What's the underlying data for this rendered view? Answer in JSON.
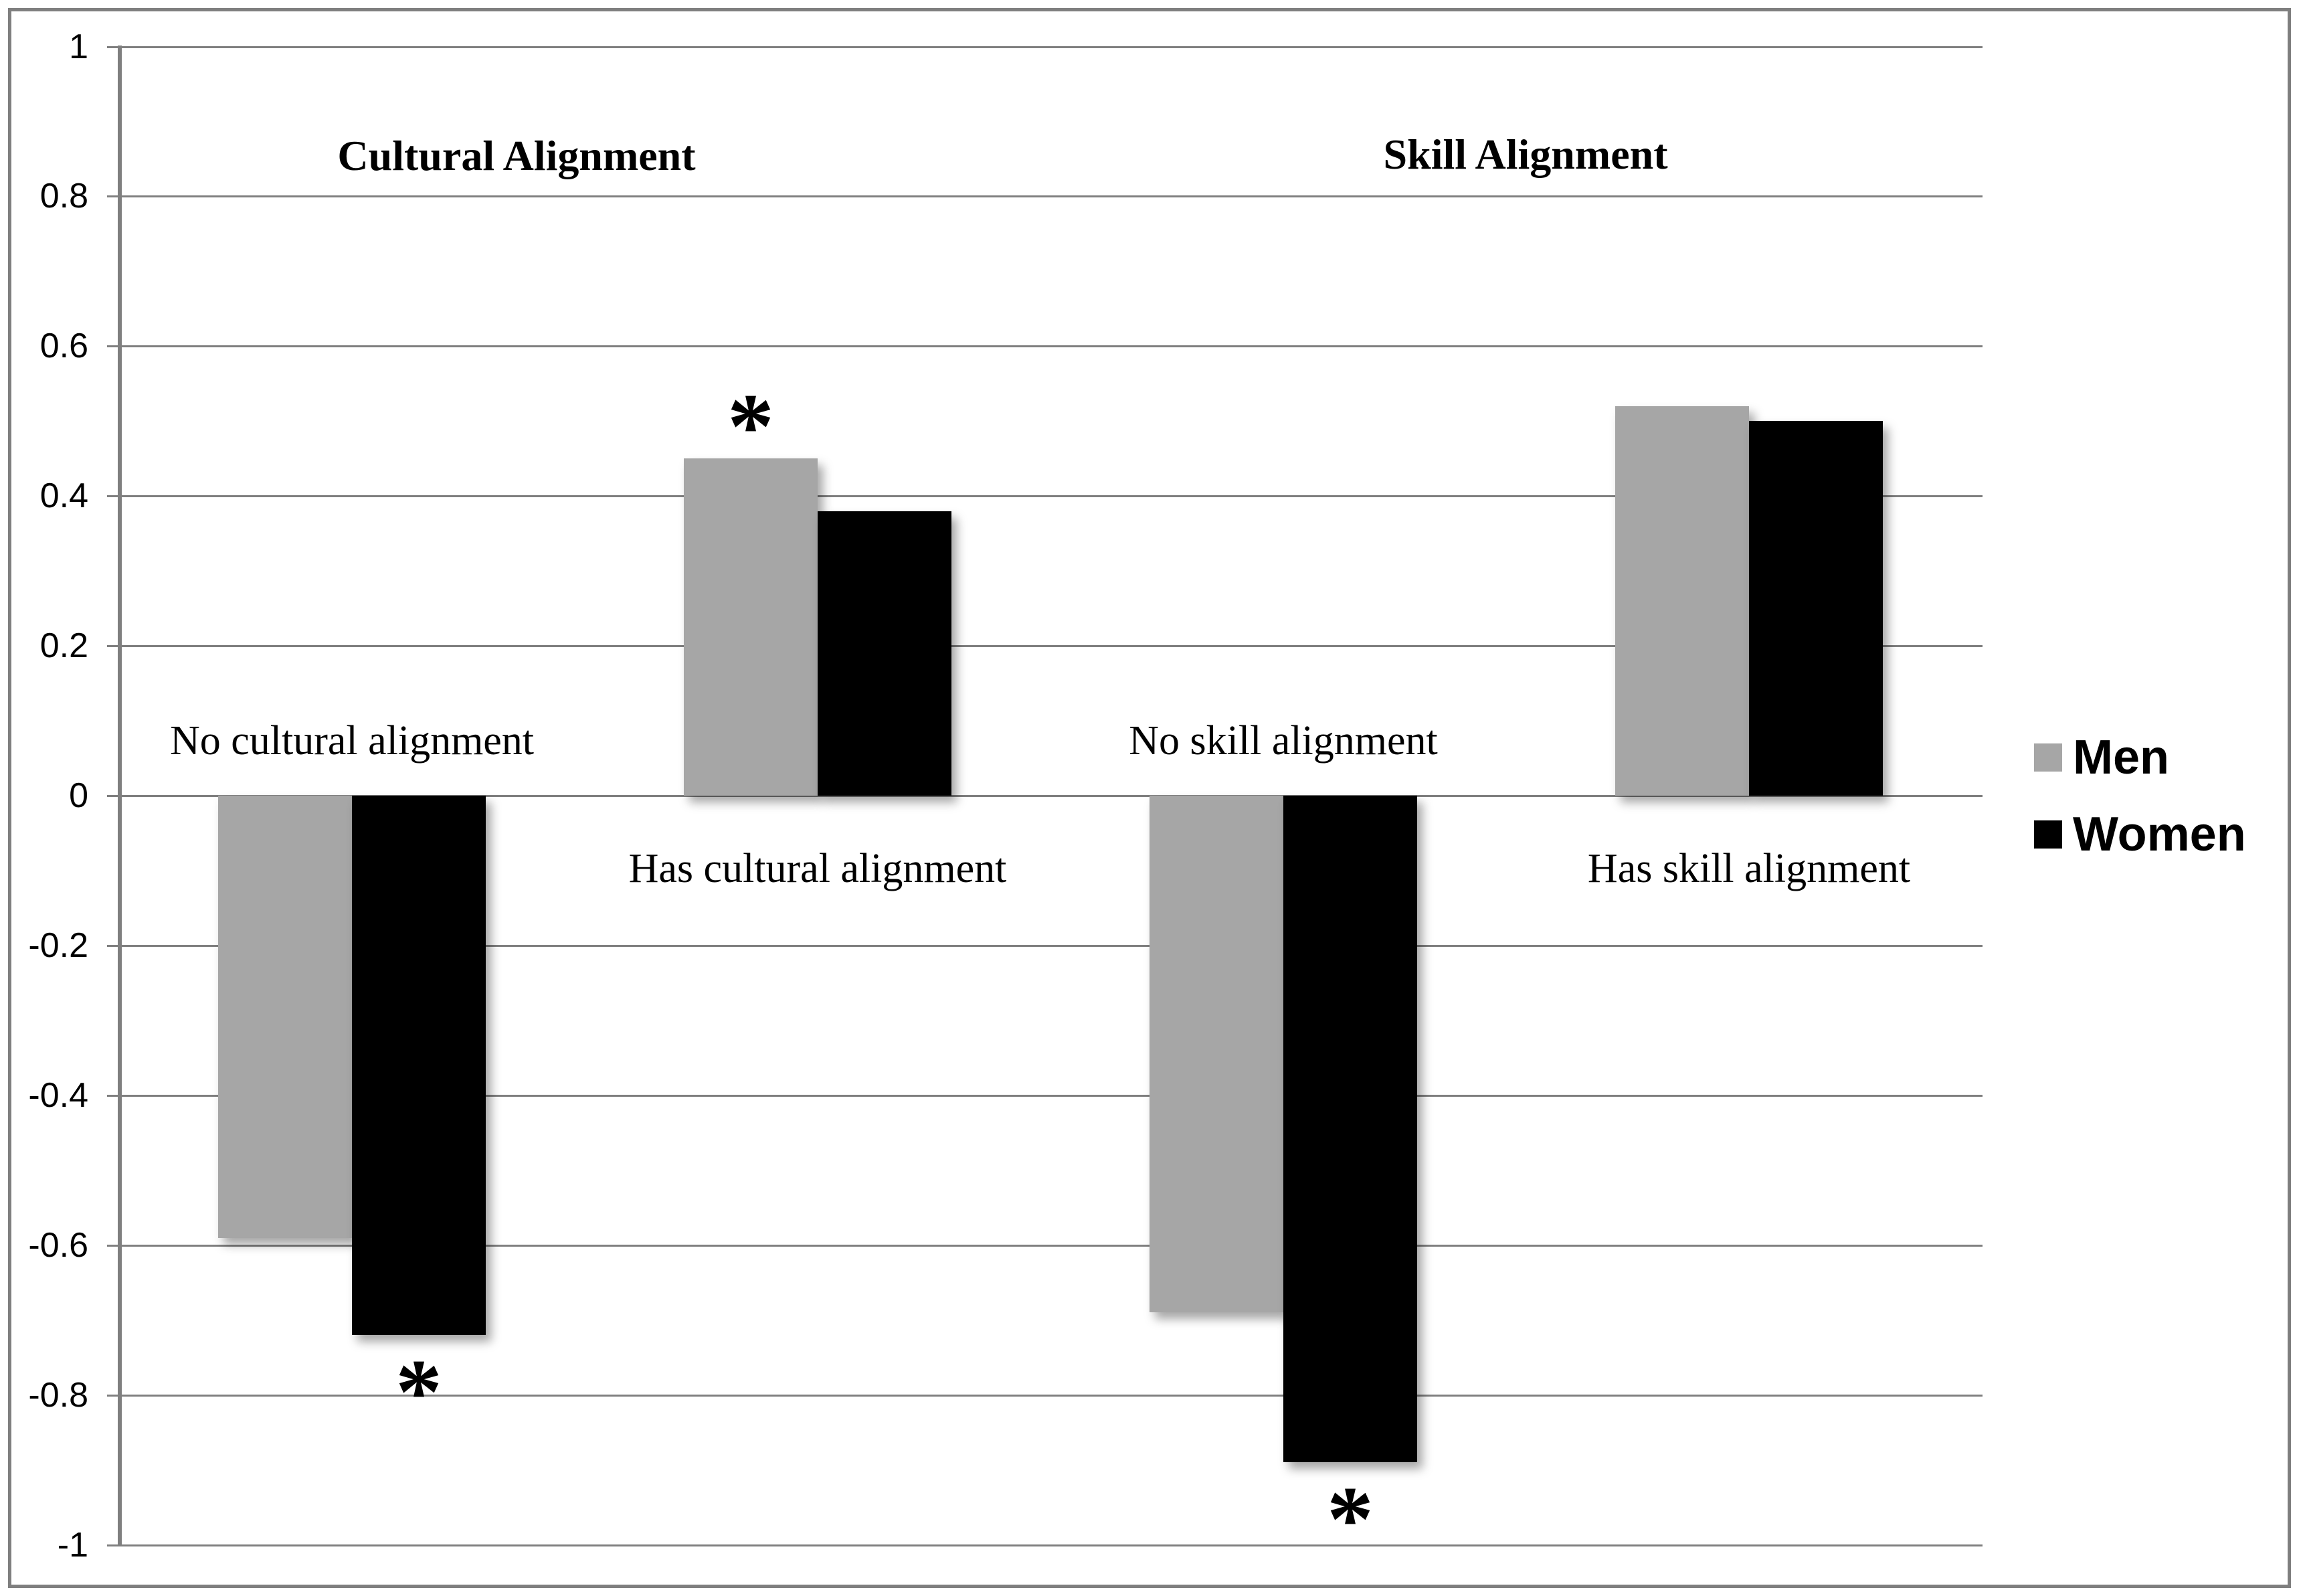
{
  "chart_data": {
    "type": "bar",
    "title": "",
    "section_titles": [
      "Cultural Alignment",
      "Skill Alignment"
    ],
    "categories": [
      "No cultural alignment",
      "Has cultural alignment",
      "No skill alignment",
      "Has skill alignment"
    ],
    "series": [
      {
        "name": "Men",
        "color": "#a6a6a6",
        "values": [
          -0.59,
          0.45,
          -0.69,
          0.52
        ]
      },
      {
        "name": "Women",
        "color": "#000000",
        "values": [
          -0.72,
          0.38,
          -0.89,
          0.5
        ]
      }
    ],
    "yticks": [
      "1",
      "0.8",
      "0.6",
      "0.4",
      "0.2",
      "0",
      "-0.2",
      "-0.4",
      "-0.6",
      "-0.8",
      "-1"
    ],
    "ylim": [
      -1,
      1
    ],
    "ytick_step": 0.2,
    "grid": true,
    "legend_position": "right",
    "annotations": {
      "significance_symbol": "*",
      "asterisks": [
        {
          "category_index": 0,
          "series_index": 1
        },
        {
          "category_index": 1,
          "series_index": 0
        },
        {
          "category_index": 2,
          "series_index": 1
        }
      ]
    },
    "colors": {
      "gridline": "#7f7f7f",
      "axis": "#7f7f7f",
      "frame_border": "#7f7f7f",
      "background": "#ffffff",
      "text": "#000000"
    }
  },
  "legend": {
    "men_label": "Men",
    "women_label": "Women"
  }
}
